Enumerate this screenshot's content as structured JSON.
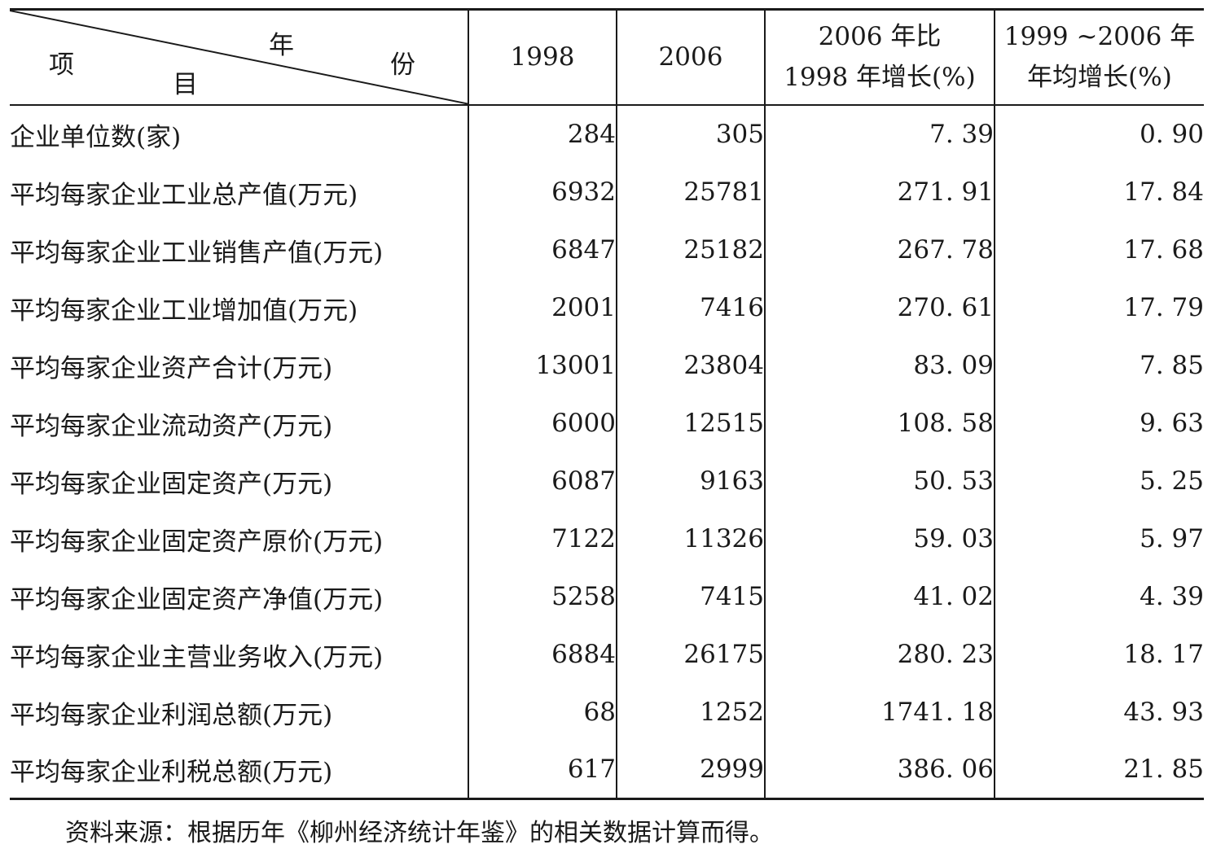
{
  "header": {
    "corner": {
      "item_top": "项",
      "year_top": "年",
      "year_right": "份",
      "item_bottom": "目"
    },
    "col1": "1998",
    "col2": "2006",
    "col3_line1": "2006 年比",
    "col3_line2": "1998 年增长(%)",
    "col4_line1": "1999 ~2006 年",
    "col4_line2": "年均增长(%)"
  },
  "rows": [
    {
      "label": "企业单位数(家)",
      "v1998": "284",
      "v2006": "305",
      "growth": "7. 39",
      "annual": "0. 90"
    },
    {
      "label": "平均每家企业工业总产值(万元)",
      "v1998": "6932",
      "v2006": "25781",
      "growth": "271. 91",
      "annual": "17. 84"
    },
    {
      "label": "平均每家企业工业销售产值(万元)",
      "v1998": "6847",
      "v2006": "25182",
      "growth": "267. 78",
      "annual": "17. 68"
    },
    {
      "label": "平均每家企业工业增加值(万元)",
      "v1998": "2001",
      "v2006": "7416",
      "growth": "270. 61",
      "annual": "17. 79"
    },
    {
      "label": "平均每家企业资产合计(万元)",
      "v1998": "13001",
      "v2006": "23804",
      "growth": "83. 09",
      "annual": "7. 85"
    },
    {
      "label": "平均每家企业流动资产(万元)",
      "v1998": "6000",
      "v2006": "12515",
      "growth": "108. 58",
      "annual": "9. 63"
    },
    {
      "label": "平均每家企业固定资产(万元)",
      "v1998": "6087",
      "v2006": "9163",
      "growth": "50. 53",
      "annual": "5. 25"
    },
    {
      "label": "平均每家企业固定资产原价(万元)",
      "v1998": "7122",
      "v2006": "11326",
      "growth": "59. 03",
      "annual": "5. 97"
    },
    {
      "label": "平均每家企业固定资产净值(万元)",
      "v1998": "5258",
      "v2006": "7415",
      "growth": "41. 02",
      "annual": "4. 39"
    },
    {
      "label": "平均每家企业主营业务收入(万元)",
      "v1998": "6884",
      "v2006": "26175",
      "growth": "280. 23",
      "annual": "18. 17"
    },
    {
      "label": "平均每家企业利润总额(万元)",
      "v1998": "68",
      "v2006": "1252",
      "growth": "1741. 18",
      "annual": "43. 93"
    },
    {
      "label": "平均每家企业利税总额(万元)",
      "v1998": "617",
      "v2006": "2999",
      "growth": "386. 06",
      "annual": "21. 85"
    }
  ],
  "note": "资料来源：根据历年《柳州经济统计年鉴》的相关数据计算而得。"
}
